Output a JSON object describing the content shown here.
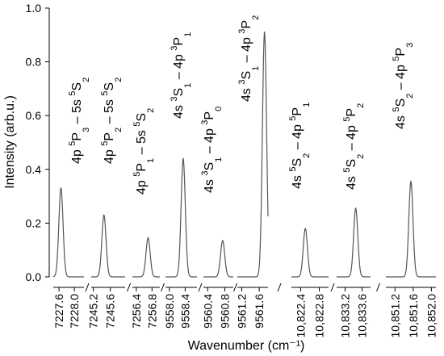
{
  "chart_data": {
    "type": "line",
    "xlabel": "Wavenumber (cm⁻¹)",
    "ylabel": "Intensity (arb.u.)",
    "ylim": [
      0,
      1.0
    ],
    "yticks": [
      "0.0",
      "0.2",
      "0.4",
      "0.6",
      "0.8",
      "1.0"
    ],
    "grid": false,
    "line_color": "#555555",
    "segments": [
      {
        "xlim": [
          7227.45,
          7228.25
        ],
        "ticks": [
          "7227.6",
          "7228.0"
        ],
        "peak": {
          "x": 7227.65,
          "y": 0.33
        },
        "label": [
          [
            "t",
            "4p "
          ],
          [
            "sup",
            "5"
          ],
          [
            "t",
            "P"
          ],
          [
            "sub",
            "3"
          ],
          [
            "t",
            " – 5s "
          ],
          [
            "sup",
            "5"
          ],
          [
            "t",
            "S"
          ],
          [
            "sub",
            "2"
          ]
        ]
      },
      {
        "xlim": [
          7245.15,
          7245.95
        ],
        "ticks": [
          "7245.2",
          "7245.6"
        ],
        "peak": {
          "x": 7245.45,
          "y": 0.23
        },
        "label": [
          [
            "t",
            "4p "
          ],
          [
            "sup",
            "5"
          ],
          [
            "t",
            "P"
          ],
          [
            "sub",
            "2"
          ],
          [
            "t",
            " – 5s "
          ],
          [
            "sup",
            "5"
          ],
          [
            "t",
            "S"
          ],
          [
            "sub",
            "2"
          ]
        ]
      },
      {
        "xlim": [
          7256.3,
          7257.0
        ],
        "ticks": [
          "7256.4",
          "7256.8"
        ],
        "peak": {
          "x": 7256.7,
          "y": 0.145
        },
        "label": [
          [
            "t",
            "4p "
          ],
          [
            "sup",
            "5"
          ],
          [
            "t",
            "P"
          ],
          [
            "sub",
            "1"
          ],
          [
            "t",
            " – 5s "
          ],
          [
            "sup",
            "5"
          ],
          [
            "t",
            "S"
          ],
          [
            "sub",
            "2"
          ]
        ]
      },
      {
        "xlim": [
          9557.9,
          9558.7
        ],
        "ticks": [
          "9558.0",
          "9558.4"
        ],
        "peak": {
          "x": 9558.35,
          "y": 0.44
        },
        "label": [
          [
            "t",
            "4s "
          ],
          [
            "sup",
            "3"
          ],
          [
            "t",
            "S"
          ],
          [
            "sub",
            "1"
          ],
          [
            "t",
            " – 4p "
          ],
          [
            "sup",
            "3"
          ],
          [
            "t",
            "P"
          ],
          [
            "sub",
            "1"
          ]
        ]
      },
      {
        "xlim": [
          9560.3,
          9561.0
        ],
        "ticks": [
          "9560.4",
          "9560.8"
        ],
        "peak": {
          "x": 9560.75,
          "y": 0.135
        },
        "label": [
          [
            "t",
            "4s "
          ],
          [
            "sup",
            "3"
          ],
          [
            "t",
            "S"
          ],
          [
            "sub",
            "1"
          ],
          [
            "t",
            " – 4p "
          ],
          [
            "sup",
            "3"
          ],
          [
            "t",
            "P"
          ],
          [
            "sub",
            "0"
          ]
        ]
      },
      {
        "xlim": [
          9561.1,
          9561.8
        ],
        "ticks": [
          "9561.2",
          "9561.6"
        ],
        "peak": {
          "x": 9561.72,
          "y": 0.91
        },
        "label": [
          [
            "t",
            "4s "
          ],
          [
            "sup",
            "3"
          ],
          [
            "t",
            "S"
          ],
          [
            "sub",
            "1"
          ],
          [
            "t",
            " – 4p "
          ],
          [
            "sup",
            "3"
          ],
          [
            "t",
            "P"
          ],
          [
            "sub",
            "2"
          ]
        ]
      },
      {
        "xlim": [
          10822.2,
          10823.0
        ],
        "ticks": [
          "10,822.4",
          "10,822.8"
        ],
        "peak": {
          "x": 10822.5,
          "y": 0.18
        },
        "label": [
          [
            "t",
            "4s "
          ],
          [
            "sup",
            "5"
          ],
          [
            "t",
            "S"
          ],
          [
            "sub",
            "2"
          ],
          [
            "t",
            " – 4p "
          ],
          [
            "sup",
            "5"
          ],
          [
            "t",
            "P"
          ],
          [
            "sub",
            "1"
          ]
        ]
      },
      {
        "xlim": [
          10833.0,
          10833.8
        ],
        "ticks": [
          "10,833.2",
          "10,833.6"
        ],
        "peak": {
          "x": 10833.45,
          "y": 0.255
        },
        "label": [
          [
            "t",
            "4s "
          ],
          [
            "sup",
            "5"
          ],
          [
            "t",
            "S"
          ],
          [
            "sub",
            "2"
          ],
          [
            "t",
            " – 4p "
          ],
          [
            "sup",
            "5"
          ],
          [
            "t",
            "P"
          ],
          [
            "sub",
            "2"
          ]
        ]
      },
      {
        "xlim": [
          10851.0,
          10852.1
        ],
        "ticks": [
          "10,851.2",
          "10,851.6",
          "10,852.0"
        ],
        "peak": {
          "x": 10851.55,
          "y": 0.355
        },
        "label": [
          [
            "t",
            "4s "
          ],
          [
            "sup",
            "5"
          ],
          [
            "t",
            "S"
          ],
          [
            "sub",
            "2"
          ],
          [
            "t",
            " – 4p "
          ],
          [
            "sup",
            "5"
          ],
          [
            "t",
            "P"
          ],
          [
            "sub",
            "3"
          ]
        ]
      }
    ]
  }
}
